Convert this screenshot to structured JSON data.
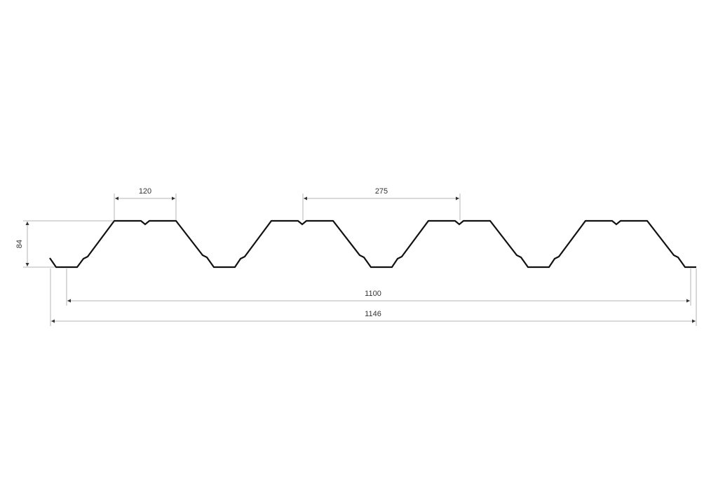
{
  "drawing": {
    "profile_color": "#111111",
    "dimension_color": "#b5b5b5",
    "dimensions": {
      "crest_width": "120",
      "pitch": "275",
      "height": "84",
      "cover_width": "1100",
      "total_width": "1146"
    }
  }
}
